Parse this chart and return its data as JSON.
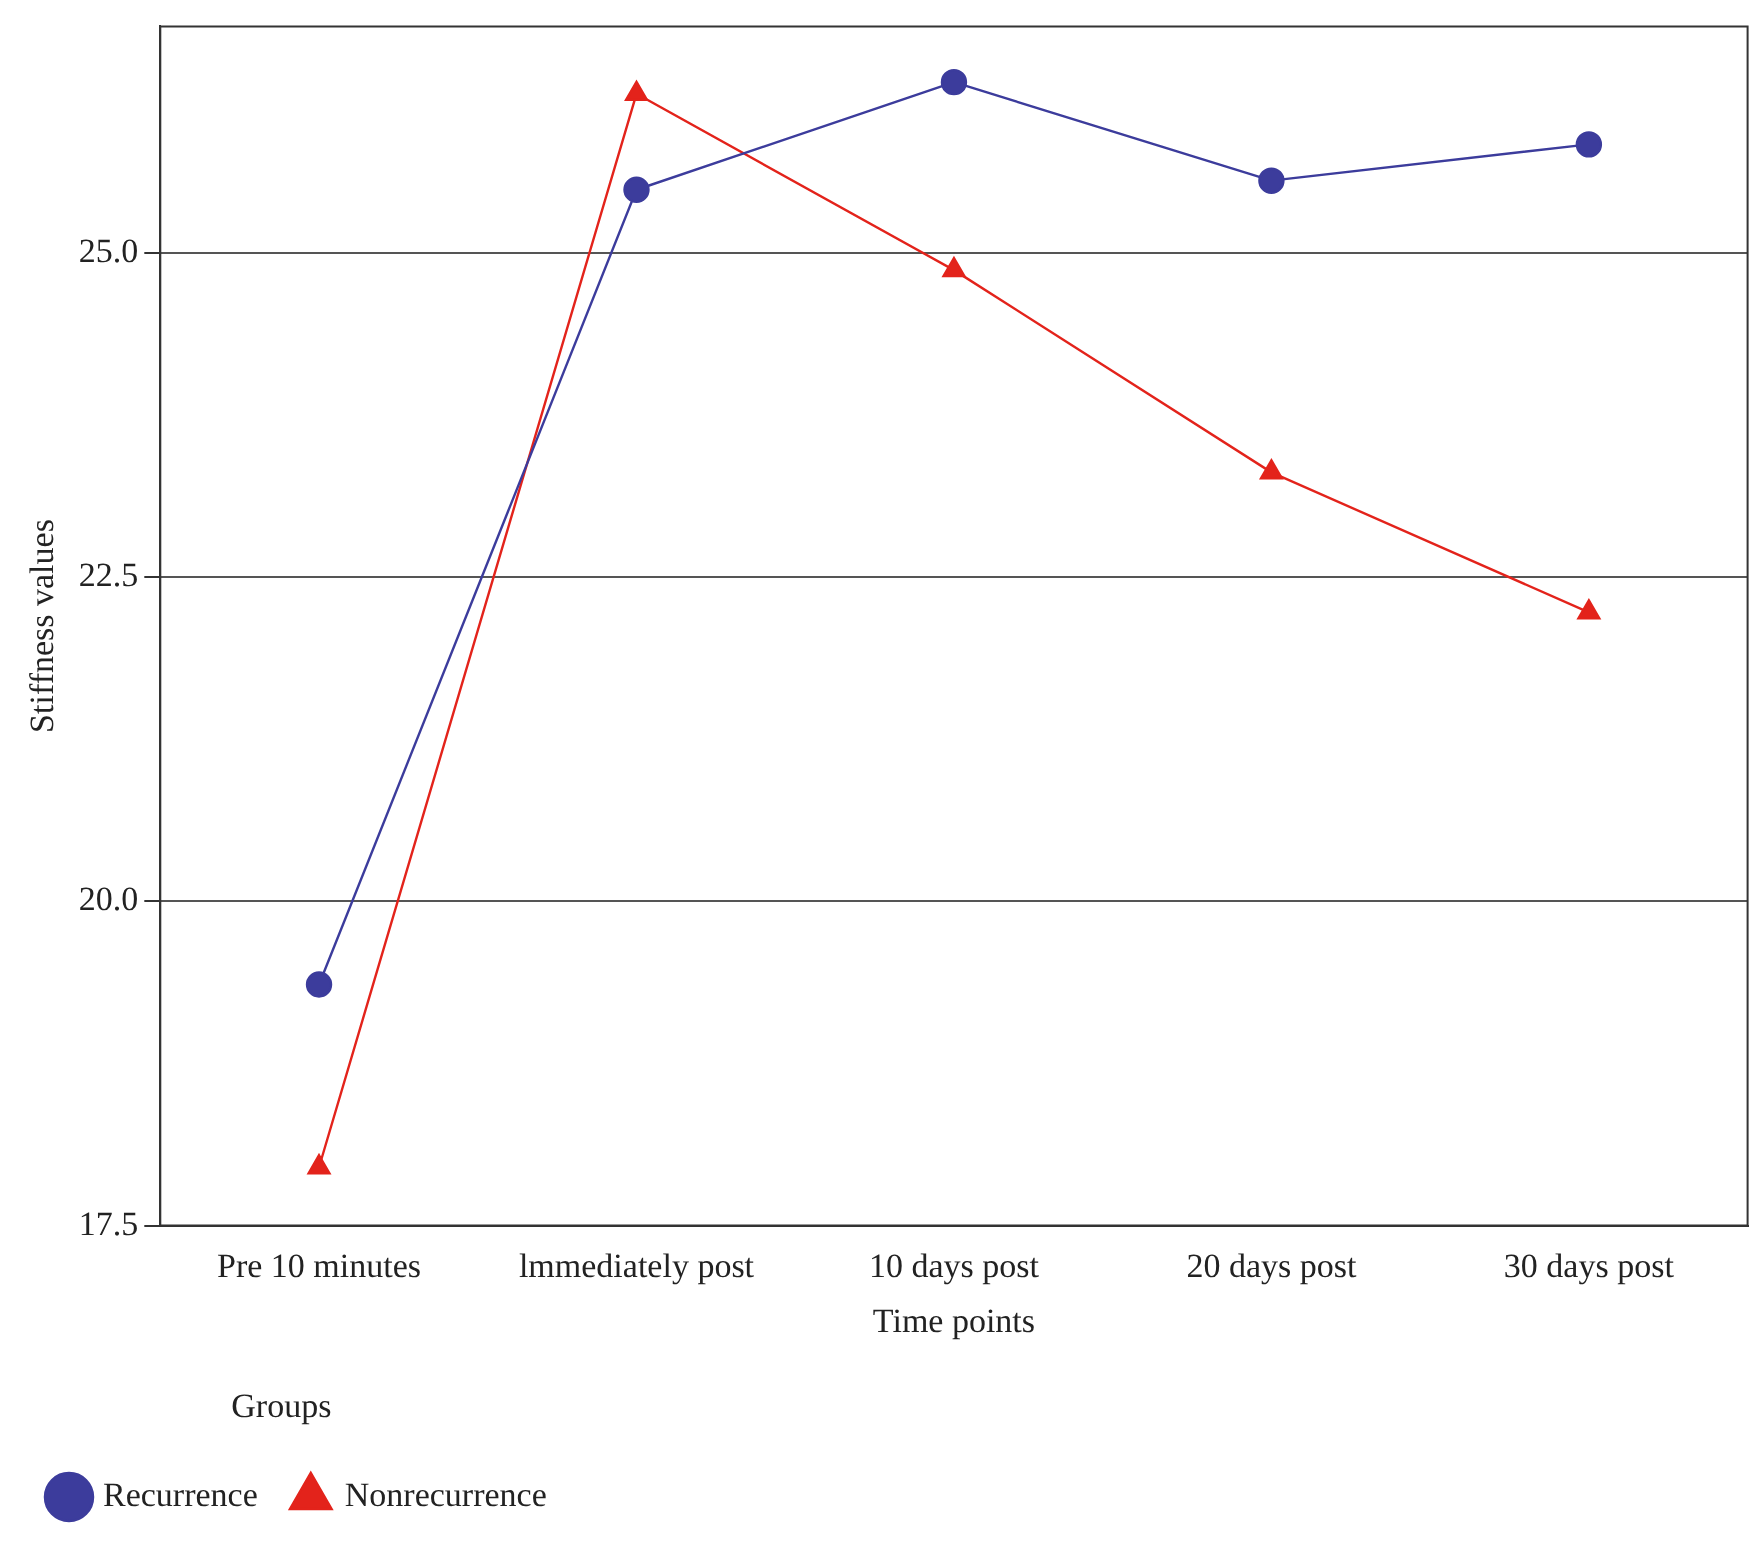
{
  "chart_data": {
    "type": "line",
    "xlabel": "Time points",
    "ylabel": "Stiffness values",
    "legend_title": "Groups",
    "categories": [
      "Pre 10 minutes",
      "lmmediately post",
      "10 days post",
      "20 days post",
      "30 days post"
    ],
    "series": [
      {
        "name": "Recurrence",
        "color": "#3c3c9c",
        "marker": "circle",
        "values": [
          19.36,
          25.49,
          26.32,
          25.56,
          25.84
        ]
      },
      {
        "name": "Nonrecurrence",
        "color": "#e3231b",
        "marker": "triangle",
        "values": [
          17.95,
          26.23,
          24.87,
          23.31,
          22.23
        ]
      }
    ],
    "ylim": [
      17.5,
      26.75
    ],
    "yticks": [
      {
        "value": 17.5,
        "label": "17.5"
      },
      {
        "value": 20,
        "label": "20.0"
      },
      {
        "value": 22.5,
        "label": "22.5"
      },
      {
        "value": 25,
        "label": "25.0"
      }
    ],
    "grid": "y",
    "legend": "bottom left",
    "line_style": "solid"
  }
}
